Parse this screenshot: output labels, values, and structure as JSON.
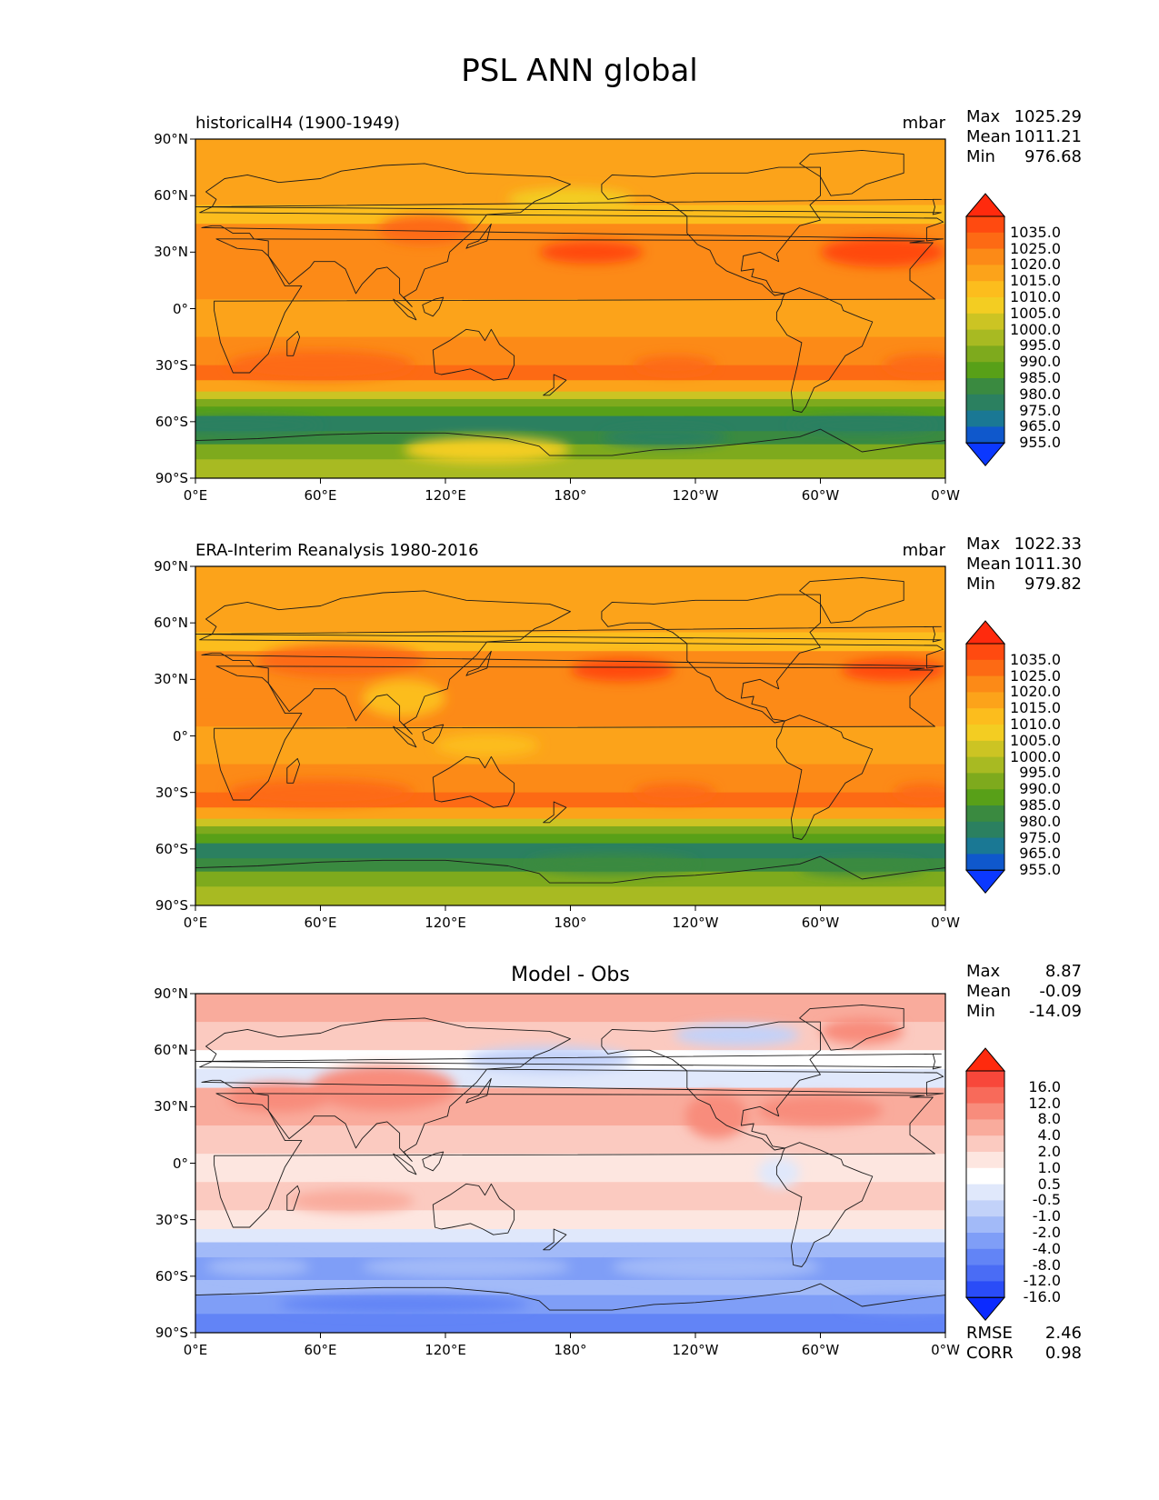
{
  "figure": {
    "title": "PSL ANN global"
  },
  "axes": {
    "y_ticks": [
      "90°N",
      "60°N",
      "30°N",
      "0°",
      "30°S",
      "60°S",
      "90°S"
    ],
    "x_ticks": [
      "0°E",
      "60°E",
      "120°E",
      "180°",
      "120°W",
      "60°W",
      "0°W"
    ]
  },
  "panels": [
    {
      "left_title": "historicalH4 (1900-1949)",
      "center_title": "",
      "units": "mbar",
      "stats": [
        {
          "label": "Max",
          "value": "1025.29"
        },
        {
          "label": "Mean",
          "value": "1011.21"
        },
        {
          "label": "Min",
          "value": "976.68"
        }
      ],
      "extra_stats": [],
      "colorbar_labels": [
        "1035.0",
        "1025.0",
        "1020.0",
        "1015.0",
        "1010.0",
        "1005.0",
        "1000.0",
        "995.0",
        "990.0",
        "985.0",
        "980.0",
        "975.0",
        "965.0",
        "955.0"
      ],
      "colorbar_colors": [
        "#ff2a0d",
        "#ff4a10",
        "#fd6a14",
        "#fc8a17",
        "#fca31a",
        "#fcbd1d",
        "#f3cd22",
        "#ccc423",
        "#a8ba22",
        "#7eaa1d",
        "#58a018",
        "#3a8a40",
        "#2b8060",
        "#1a7894",
        "#0f58cc",
        "#0b38ff"
      ]
    },
    {
      "left_title": "ERA-Interim Reanalysis 1980-2016",
      "center_title": "",
      "units": "mbar",
      "stats": [
        {
          "label": "Max",
          "value": "1022.33"
        },
        {
          "label": "Mean",
          "value": "1011.30"
        },
        {
          "label": "Min",
          "value": "979.82"
        }
      ],
      "extra_stats": [],
      "colorbar_labels": [
        "1035.0",
        "1025.0",
        "1020.0",
        "1015.0",
        "1010.0",
        "1005.0",
        "1000.0",
        "995.0",
        "990.0",
        "985.0",
        "980.0",
        "975.0",
        "965.0",
        "955.0"
      ],
      "colorbar_colors": [
        "#ff2a0d",
        "#ff4a10",
        "#fd6a14",
        "#fc8a17",
        "#fca31a",
        "#fcbd1d",
        "#f3cd22",
        "#ccc423",
        "#a8ba22",
        "#7eaa1d",
        "#58a018",
        "#3a8a40",
        "#2b8060",
        "#1a7894",
        "#0f58cc",
        "#0b38ff"
      ]
    },
    {
      "left_title": "",
      "center_title": "Model - Obs",
      "units": "",
      "stats": [
        {
          "label": "Max",
          "value": "8.87"
        },
        {
          "label": "Mean",
          "value": "-0.09"
        },
        {
          "label": "Min",
          "value": "-14.09"
        }
      ],
      "extra_stats": [
        {
          "label": "RMSE",
          "value": "2.46"
        },
        {
          "label": "CORR",
          "value": "0.98"
        }
      ],
      "colorbar_labels": [
        "16.0",
        "12.0",
        "8.0",
        "4.0",
        "2.0",
        "1.0",
        "0.5",
        "-0.5",
        "-1.0",
        "-2.0",
        "-4.0",
        "-8.0",
        "-12.0",
        "-16.0"
      ],
      "colorbar_colors": [
        "#ff2a0d",
        "#f8473a",
        "#f86a5a",
        "#f88c7c",
        "#f9ab9c",
        "#fbcac0",
        "#fde6e0",
        "#ffffff",
        "#e0e8fb",
        "#c2d2f9",
        "#a2baf8",
        "#7f9ef7",
        "#6284f6",
        "#4a6cf5",
        "#2a4cf7",
        "#0b2aff"
      ]
    }
  ]
}
